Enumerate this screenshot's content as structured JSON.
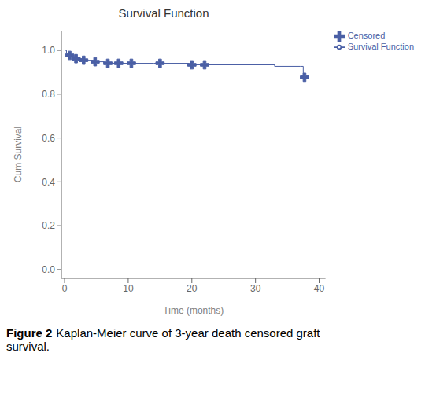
{
  "chart_data": {
    "type": "step",
    "title": "Survival Function",
    "x_label": "Time (months)",
    "y_label": "Cum Survival",
    "xlim": [
      -0.5,
      41
    ],
    "ylim": [
      -0.04,
      1.09
    ],
    "xticks": [
      0,
      10,
      20,
      30,
      40
    ],
    "yticks": [
      {
        "value": 0,
        "label": "0.0"
      },
      0.2,
      0.4,
      0.6,
      0.8,
      {
        "value": 1,
        "label": "1.0"
      }
    ],
    "grid": false,
    "legend": "right",
    "series": [
      {
        "name": "Survival Function",
        "type": "line",
        "line_style": "step",
        "color": "#4a5fa5",
        "x": [
          0,
          0.3,
          1.0,
          1.5,
          2.2,
          3.2,
          4.5,
          6.2,
          7.5,
          9.0,
          14.0,
          19.5,
          33.0,
          37.0,
          37.5
        ],
        "values": [
          1.0,
          0.985,
          0.977,
          0.969,
          0.962,
          0.955,
          0.948,
          0.941,
          0.941,
          0.941,
          0.941,
          0.934,
          0.927,
          0.927,
          0.877
        ]
      },
      {
        "name": "Censored",
        "type": "scatter",
        "marker": "plus",
        "color": "#4a5fa5",
        "x": [
          0.8,
          1.8,
          3.0,
          4.8,
          6.8,
          8.5,
          10.5,
          15.0,
          20.0,
          22.0,
          37.7
        ],
        "values": [
          0.977,
          0.962,
          0.955,
          0.948,
          0.941,
          0.941,
          0.941,
          0.941,
          0.934,
          0.934,
          0.877
        ]
      }
    ],
    "annotations": [
      "Figure 2",
      "Kaplan-Meier curve of 3-year death censored graft\nsurvival."
    ]
  }
}
